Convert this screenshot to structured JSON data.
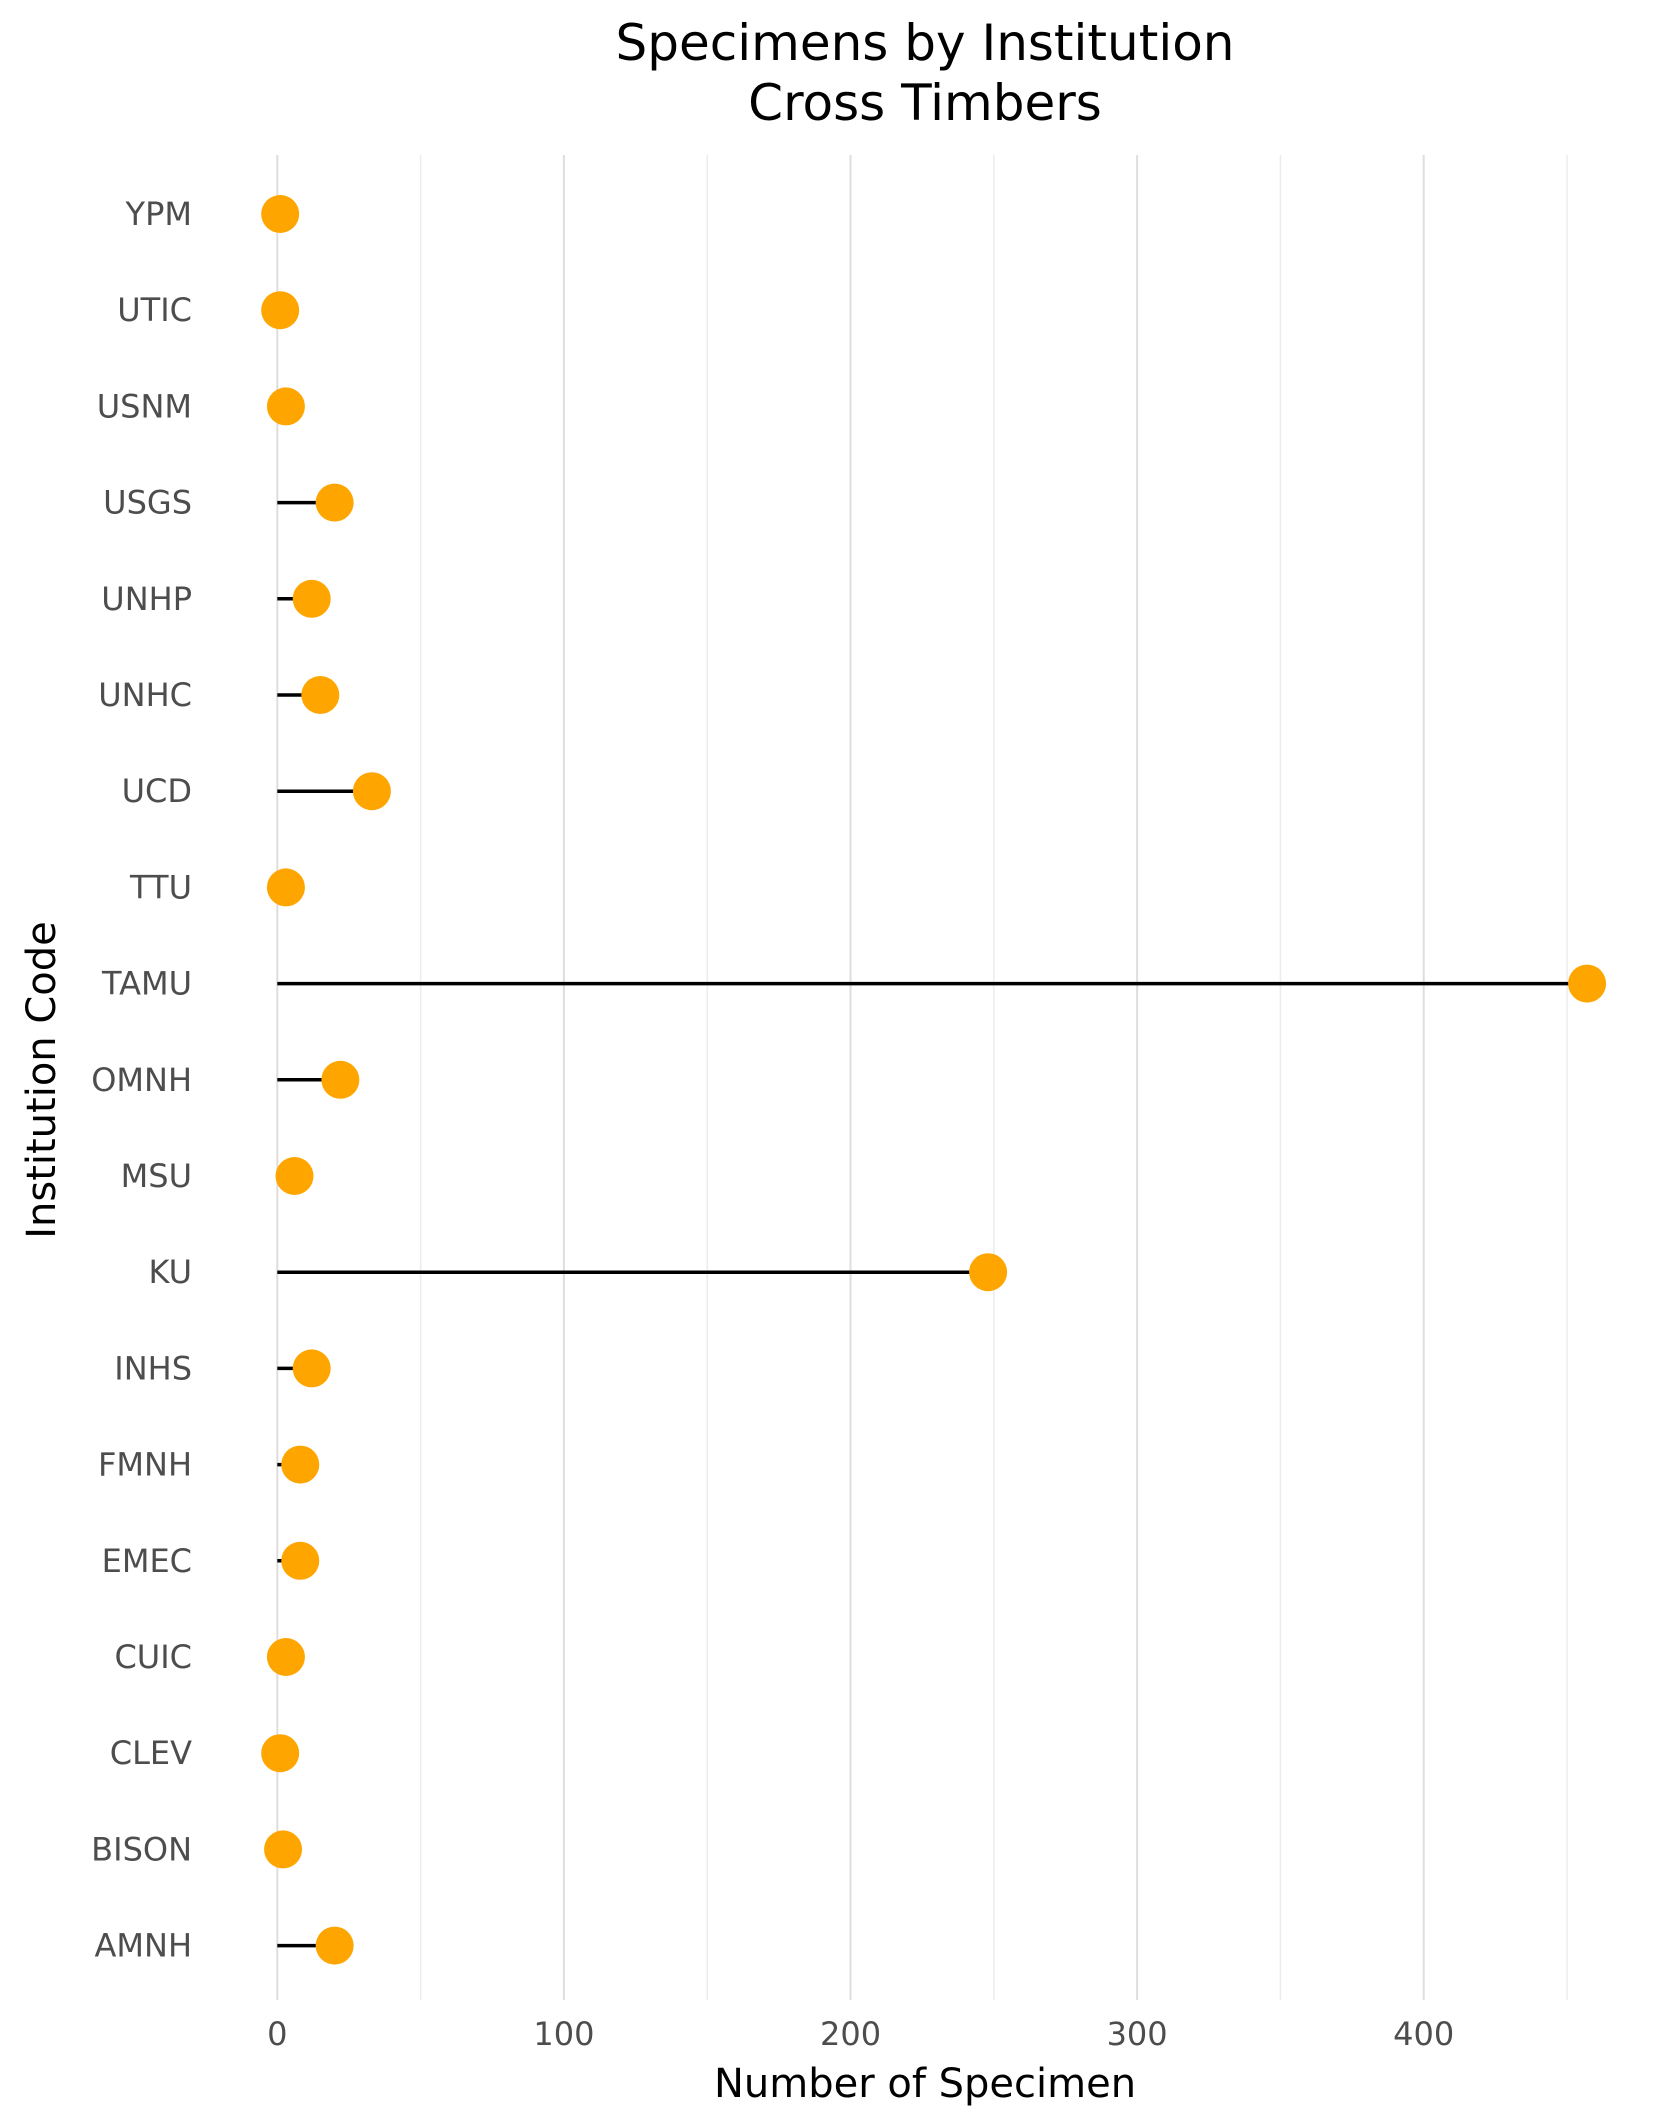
{
  "chart_data": {
    "type": "lollipop",
    "orientation": "horizontal",
    "title": "Specimens by Institution",
    "subtitle": "Cross Timbers",
    "xlabel": "Number of Specimen",
    "ylabel": "Institution Code",
    "xlim": [
      -20,
      465
    ],
    "xticks": [
      0,
      100,
      200,
      300,
      400
    ],
    "xtick_labels": [
      "0",
      "100",
      "200",
      "300",
      "400"
    ],
    "grid": true,
    "legend": "none",
    "point_color": "#FFA500",
    "stem_color": "#000000",
    "categories": [
      "YPM",
      "UTIC",
      "USNM",
      "USGS",
      "UNHP",
      "UNHC",
      "UCD",
      "TTU",
      "TAMU",
      "OMNH",
      "MSU",
      "KU",
      "INHS",
      "FMNH",
      "EMEC",
      "CUIC",
      "CLEV",
      "BISON",
      "AMNH"
    ],
    "values": [
      1,
      1,
      3,
      20,
      12,
      15,
      33,
      3,
      457,
      22,
      6,
      248,
      12,
      8,
      8,
      3,
      1,
      2,
      20
    ]
  }
}
